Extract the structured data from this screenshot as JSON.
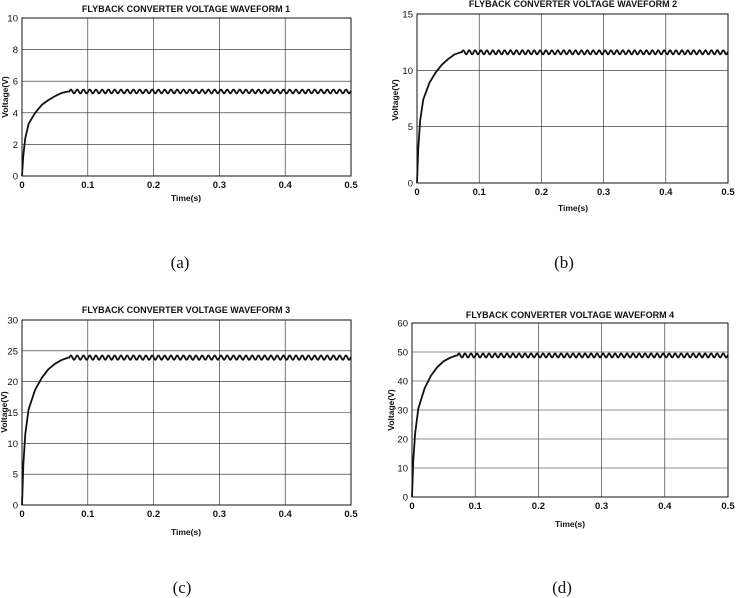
{
  "chart_data": [
    {
      "type": "line",
      "caption": "(a)",
      "title": "FLYBACK CONVERTER VOLTAGE WAVEFORM 1",
      "xlabel": "Time(s)",
      "ylabel": "Voltage(V)",
      "xlim": [
        0,
        0.5
      ],
      "ylim": [
        0,
        10
      ],
      "xticks": [
        0,
        0.1,
        0.2,
        0.3,
        0.4,
        0.5
      ],
      "xtick_labels": [
        "0",
        "0.1",
        "0.2",
        "0.3",
        "0.4",
        "0.5"
      ],
      "yticks": [
        0,
        2,
        4,
        6,
        8,
        10
      ],
      "ytick_labels": [
        "0",
        "2",
        "4",
        "6",
        "8",
        "10"
      ],
      "grid": true,
      "series": [
        {
          "settle_time": 0.072,
          "steady_value": 5.35,
          "ripple_amplitude": 0.12,
          "x": [
            0,
            0.002,
            0.005,
            0.01,
            0.02,
            0.03,
            0.04,
            0.05,
            0.06,
            0.07,
            0.1,
            0.2,
            0.3,
            0.4,
            0.5
          ],
          "y": [
            0,
            1.3,
            2.4,
            3.3,
            4.0,
            4.5,
            4.8,
            5.05,
            5.25,
            5.35,
            5.35,
            5.35,
            5.35,
            5.35,
            5.35
          ]
        }
      ]
    },
    {
      "type": "line",
      "caption": "(b)",
      "title": "FLYBACK CONVERTER VOLTAGE WAVEFORM 2",
      "xlabel": "Time(s)",
      "ylabel": "Voltage(V)",
      "xlim": [
        0,
        0.5
      ],
      "ylim": [
        0,
        15
      ],
      "xticks": [
        0,
        0.1,
        0.2,
        0.3,
        0.4,
        0.5
      ],
      "xtick_labels": [
        "0",
        "0.1",
        "0.2",
        "0.3",
        "0.4",
        "0.5"
      ],
      "yticks": [
        0,
        5,
        10,
        15
      ],
      "ytick_labels": [
        "0",
        "5",
        "10",
        "15"
      ],
      "grid": true,
      "series": [
        {
          "settle_time": 0.072,
          "steady_value": 11.6,
          "ripple_amplitude": 0.18,
          "x": [
            0,
            0.002,
            0.005,
            0.01,
            0.02,
            0.03,
            0.04,
            0.05,
            0.06,
            0.07,
            0.1,
            0.2,
            0.3,
            0.4,
            0.5
          ],
          "y": [
            0,
            3.0,
            5.5,
            7.4,
            8.9,
            9.8,
            10.5,
            11.0,
            11.4,
            11.6,
            11.6,
            11.6,
            11.6,
            11.6,
            11.6
          ]
        }
      ]
    },
    {
      "type": "line",
      "caption": "(c)",
      "title": "FLYBACK CONVERTER VOLTAGE WAVEFORM 3",
      "xlabel": "Time(s)",
      "ylabel": "Voltage(V)",
      "xlim": [
        0,
        0.5
      ],
      "ylim": [
        0,
        30
      ],
      "xticks": [
        0,
        0.1,
        0.2,
        0.3,
        0.4,
        0.5
      ],
      "xtick_labels": [
        "0",
        "0.1",
        "0.2",
        "0.3",
        "0.4",
        "0.5"
      ],
      "yticks": [
        0,
        5,
        10,
        15,
        20,
        25,
        30
      ],
      "ytick_labels": [
        "0",
        "5",
        "10",
        "15",
        "20",
        "25",
        "30"
      ],
      "grid": true,
      "series": [
        {
          "settle_time": 0.072,
          "steady_value": 23.9,
          "ripple_amplitude": 0.35,
          "x": [
            0,
            0.002,
            0.005,
            0.01,
            0.02,
            0.03,
            0.04,
            0.05,
            0.06,
            0.07,
            0.1,
            0.2,
            0.3,
            0.4,
            0.5
          ],
          "y": [
            0,
            6.5,
            11.5,
            15.5,
            18.7,
            20.6,
            22.0,
            22.9,
            23.5,
            23.9,
            23.9,
            23.9,
            23.9,
            23.9,
            23.9
          ]
        }
      ]
    },
    {
      "type": "line",
      "caption": "(d)",
      "title": "FLYBACK CONVERTER VOLTAGE WAVEFORM 4",
      "xlabel": "Time(s)",
      "ylabel": "Voltage(V)",
      "xlim": [
        0,
        0.5
      ],
      "ylim": [
        0,
        60
      ],
      "xticks": [
        0,
        0.1,
        0.2,
        0.3,
        0.4,
        0.5
      ],
      "xtick_labels": [
        "0",
        "0.1",
        "0.2",
        "0.3",
        "0.4",
        "0.5"
      ],
      "yticks": [
        0,
        10,
        20,
        30,
        40,
        50,
        60
      ],
      "ytick_labels": [
        "0",
        "10",
        "20",
        "30",
        "40",
        "50",
        "60"
      ],
      "grid": true,
      "series": [
        {
          "settle_time": 0.072,
          "steady_value": 48.8,
          "ripple_amplitude": 0.7,
          "x": [
            0,
            0.002,
            0.005,
            0.01,
            0.02,
            0.03,
            0.04,
            0.05,
            0.06,
            0.07,
            0.1,
            0.2,
            0.3,
            0.4,
            0.5
          ],
          "y": [
            0,
            12.5,
            22.0,
            30.5,
            37.5,
            41.8,
            44.8,
            46.8,
            48.0,
            48.8,
            48.8,
            48.8,
            48.8,
            48.8,
            48.8
          ]
        }
      ]
    }
  ]
}
